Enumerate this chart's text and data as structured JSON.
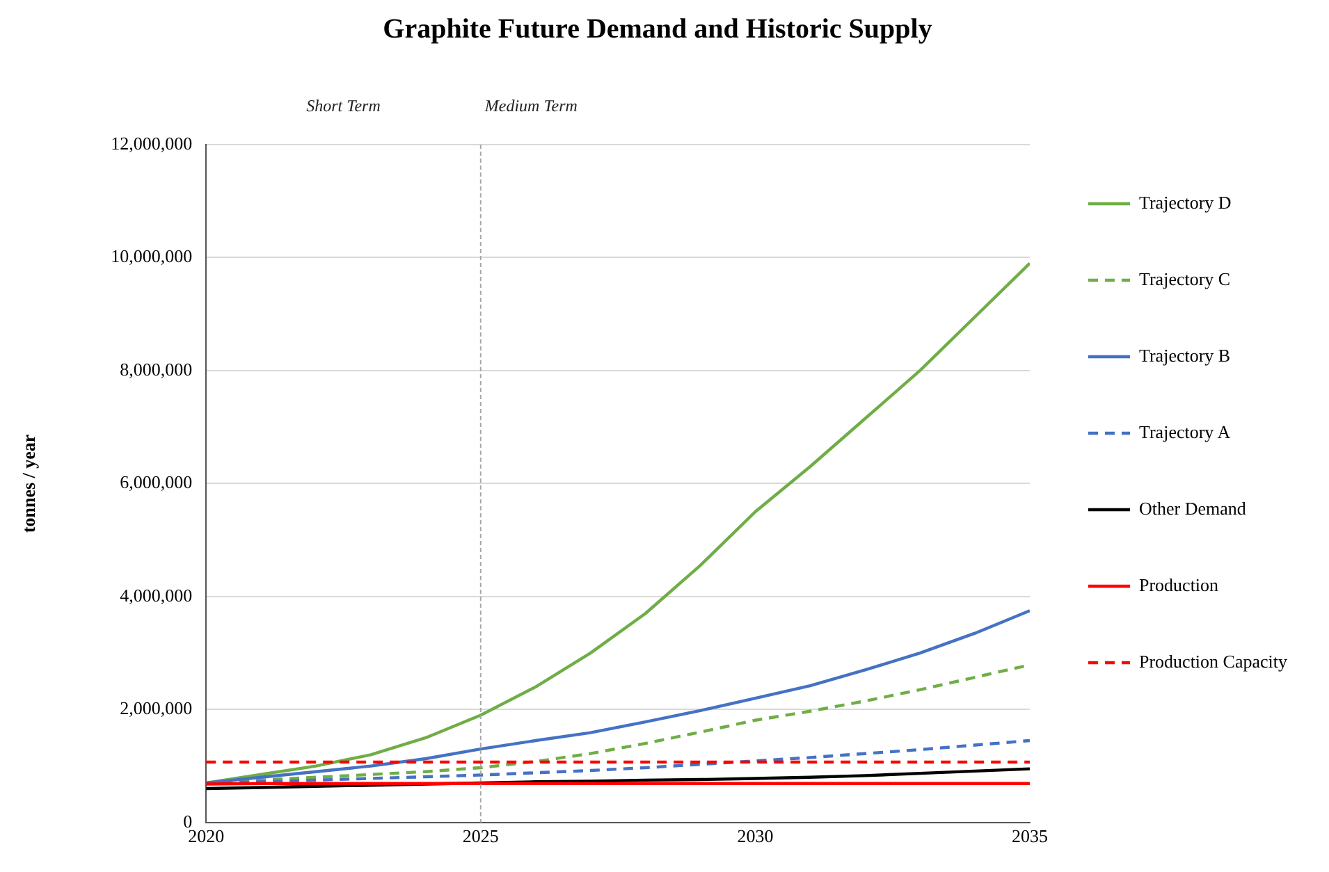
{
  "chart_data": {
    "type": "line",
    "title": "Graphite Future Demand and Historic Supply",
    "ylabel": "tonnes / year",
    "x": [
      2020,
      2021,
      2022,
      2023,
      2024,
      2025,
      2026,
      2027,
      2028,
      2029,
      2030,
      2031,
      2032,
      2033,
      2034,
      2035
    ],
    "xlim": [
      2020,
      2035
    ],
    "xticks": [
      2020,
      2025,
      2030,
      2035
    ],
    "ylim": [
      0,
      12000000
    ],
    "yticks": [
      {
        "value": 0,
        "label": "0"
      },
      {
        "value": 2000000,
        "label": "2,000,000"
      },
      {
        "value": 4000000,
        "label": "4,000,000"
      },
      {
        "value": 6000000,
        "label": "6,000,000"
      },
      {
        "value": 8000000,
        "label": "8,000,000"
      },
      {
        "value": 10000000,
        "label": "10,000,000"
      },
      {
        "value": 12000000,
        "label": "12,000,000"
      }
    ],
    "grid": "y",
    "legend": "right",
    "marker": "none",
    "series": [
      {
        "name": "Trajectory D",
        "color": "#70ad47",
        "line_style": "solid",
        "values": [
          700000,
          850000,
          1000000,
          1200000,
          1500000,
          1900000,
          2400000,
          3000000,
          3700000,
          4550000,
          5500000,
          6300000,
          7150000,
          8000000,
          8950000,
          9900000
        ]
      },
      {
        "name": "Trajectory C",
        "color": "#70ad47",
        "line_style": "dashed",
        "values": [
          700000,
          750000,
          800000,
          850000,
          900000,
          970000,
          1080000,
          1220000,
          1400000,
          1600000,
          1810000,
          1970000,
          2150000,
          2350000,
          2570000,
          2790000
        ]
      },
      {
        "name": "Trajectory B",
        "color": "#4472c4",
        "line_style": "solid",
        "values": [
          700000,
          800000,
          900000,
          1000000,
          1130000,
          1300000,
          1450000,
          1590000,
          1780000,
          1980000,
          2200000,
          2420000,
          2700000,
          3000000,
          3350000,
          3750000
        ]
      },
      {
        "name": "Trajectory A",
        "color": "#4472c4",
        "line_style": "dashed",
        "values": [
          700000,
          720000,
          750000,
          780000,
          810000,
          840000,
          880000,
          920000,
          970000,
          1030000,
          1090000,
          1150000,
          1220000,
          1290000,
          1370000,
          1450000
        ]
      },
      {
        "name": "Other Demand",
        "color": "#000000",
        "line_style": "solid",
        "values": [
          600000,
          620000,
          640000,
          660000,
          680000,
          700000,
          720000,
          730000,
          750000,
          760000,
          780000,
          800000,
          830000,
          870000,
          910000,
          950000
        ]
      },
      {
        "name": "Production",
        "color": "#ff0000",
        "line_style": "solid",
        "values": [
          680000,
          690000,
          690000,
          690000,
          690000,
          690000,
          690000,
          690000,
          690000,
          690000,
          690000,
          690000,
          690000,
          690000,
          690000,
          690000
        ]
      },
      {
        "name": "Production Capacity",
        "color": "#ff0000",
        "line_style": "dashed",
        "values": [
          1070000,
          1070000,
          1070000,
          1070000,
          1070000,
          1070000,
          1070000,
          1070000,
          1070000,
          1070000,
          1070000,
          1070000,
          1070000,
          1070000,
          1070000,
          1070000
        ]
      }
    ],
    "ref_lines": [
      {
        "axis": "x",
        "value": 2025,
        "label": "Medium Term",
        "color": "#a6a6a6",
        "line_style": "dashed"
      }
    ],
    "annotations": [
      "Short Term"
    ]
  }
}
